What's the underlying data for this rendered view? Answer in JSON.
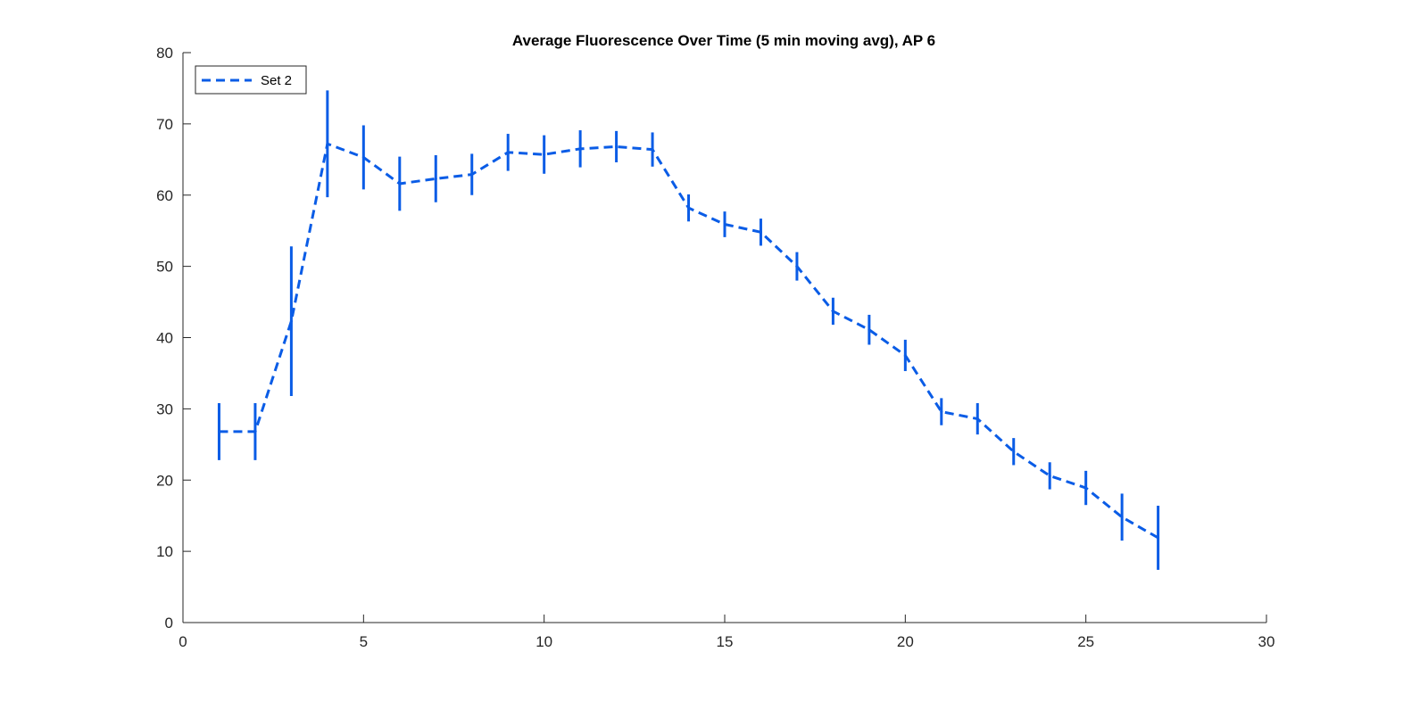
{
  "chart_data": {
    "type": "line",
    "title": "Average Fluorescence Over Time (5 min moving avg), AP 6",
    "xlabel": "",
    "ylabel": "",
    "xlim": [
      0,
      30
    ],
    "ylim": [
      0,
      80
    ],
    "xticks": [
      0,
      5,
      10,
      15,
      20,
      25,
      30
    ],
    "yticks": [
      0,
      10,
      20,
      30,
      40,
      50,
      60,
      70,
      80
    ],
    "grid": false,
    "legend_position": "top-left",
    "series": [
      {
        "name": "Set 2",
        "color": "#0a5ce6",
        "line_style": "dashed",
        "error_bars": true,
        "x": [
          1,
          2,
          3,
          4,
          5,
          6,
          7,
          8,
          9,
          10,
          11,
          12,
          13,
          14,
          15,
          16,
          17,
          18,
          19,
          20,
          21,
          22,
          23,
          24,
          25,
          26,
          27
        ],
        "y": [
          26.8,
          26.8,
          42.3,
          67.2,
          65.3,
          61.6,
          62.3,
          62.9,
          66.0,
          65.7,
          66.5,
          66.8,
          66.4,
          58.2,
          55.9,
          54.8,
          50.0,
          43.7,
          41.1,
          37.5,
          29.6,
          28.6,
          24.0,
          20.6,
          18.9,
          14.8,
          11.9
        ],
        "err": [
          4.0,
          4.0,
          10.5,
          7.5,
          4.5,
          3.8,
          3.3,
          2.9,
          2.6,
          2.7,
          2.6,
          2.2,
          2.4,
          1.9,
          1.8,
          1.9,
          2.0,
          1.9,
          2.1,
          2.2,
          1.9,
          2.2,
          1.9,
          1.9,
          2.4,
          3.3,
          4.5
        ]
      }
    ]
  }
}
